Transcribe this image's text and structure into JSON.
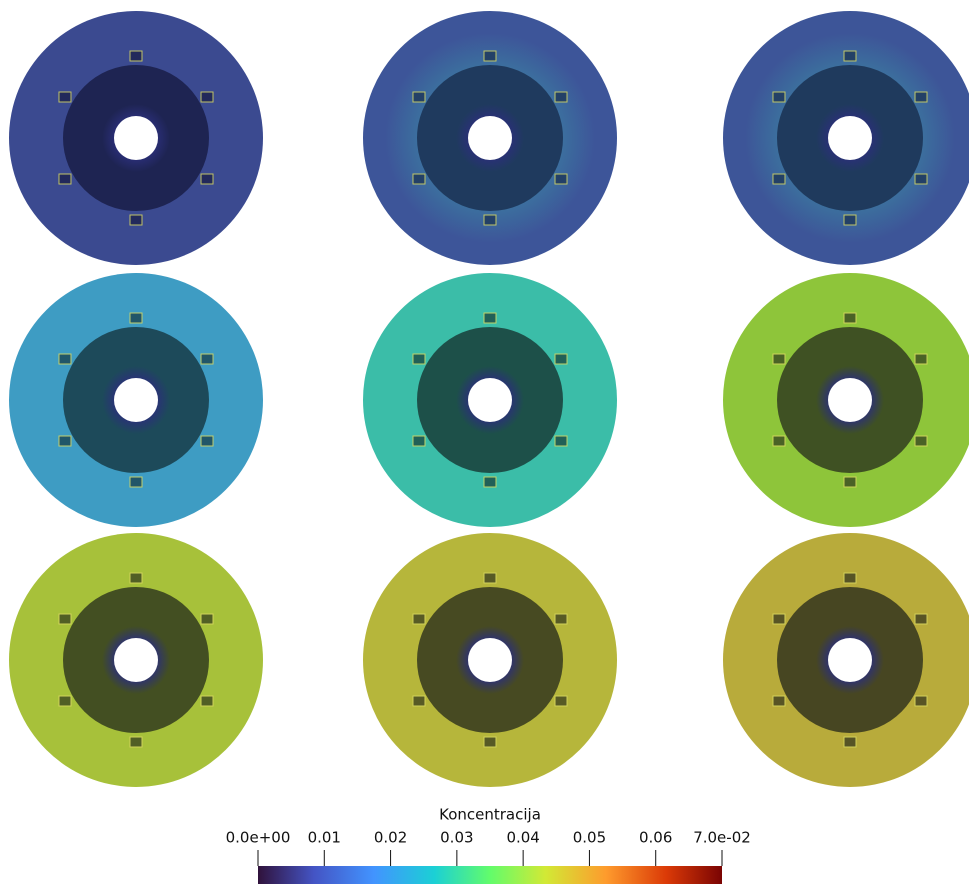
{
  "colorbar": {
    "title": "Koncentracija",
    "range": [
      0,
      0.07
    ],
    "ticks": [
      {
        "value": 0,
        "label": "0.0e+00"
      },
      0.01,
      0.02,
      0.03,
      0.04,
      0.05,
      0.06,
      {
        "value": 0.07,
        "label": "7.0e-02"
      }
    ]
  }
}
